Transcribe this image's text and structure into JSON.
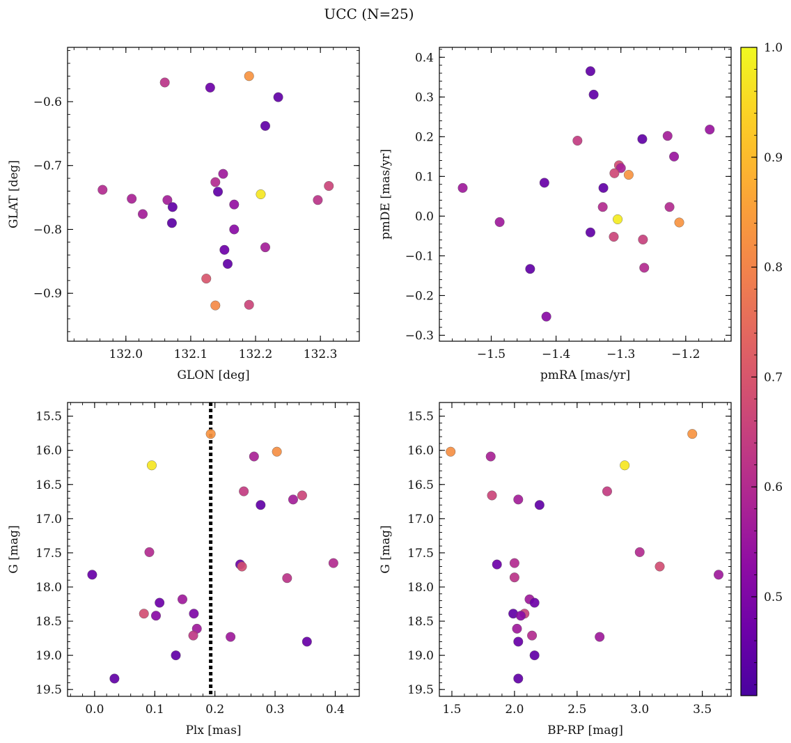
{
  "figure": {
    "title": "UCC (N=25)"
  },
  "chart_data": [
    {
      "type": "scatter",
      "name": "glon-glat",
      "title": "",
      "xlabel": "GLON [deg]",
      "ylabel": "GLAT [deg]",
      "xlim": [
        131.91,
        132.36
      ],
      "ylim": [
        -0.975,
        -0.515
      ],
      "xticks": [
        132.0,
        132.1,
        132.2,
        132.3
      ],
      "yticks": [
        -0.6,
        -0.7,
        -0.8,
        -0.9
      ],
      "tick_decimals_x": 1,
      "tick_decimals_y": 1,
      "grid": false,
      "points": [
        {
          "x": 132.19,
          "y": -0.56,
          "c": 0.83
        },
        {
          "x": 132.06,
          "y": -0.57,
          "c": 0.62
        },
        {
          "x": 132.13,
          "y": -0.578,
          "c": 0.47
        },
        {
          "x": 132.235,
          "y": -0.593,
          "c": 0.45
        },
        {
          "x": 132.215,
          "y": -0.638,
          "c": 0.45
        },
        {
          "x": 132.15,
          "y": -0.713,
          "c": 0.56
        },
        {
          "x": 132.138,
          "y": -0.726,
          "c": 0.6
        },
        {
          "x": 132.313,
          "y": -0.732,
          "c": 0.66
        },
        {
          "x": 131.964,
          "y": -0.738,
          "c": 0.6
        },
        {
          "x": 132.142,
          "y": -0.741,
          "c": 0.45
        },
        {
          "x": 132.208,
          "y": -0.745,
          "c": 0.97
        },
        {
          "x": 132.009,
          "y": -0.752,
          "c": 0.58
        },
        {
          "x": 132.064,
          "y": -0.754,
          "c": 0.57
        },
        {
          "x": 132.296,
          "y": -0.754,
          "c": 0.62
        },
        {
          "x": 132.167,
          "y": -0.761,
          "c": 0.54
        },
        {
          "x": 132.072,
          "y": -0.765,
          "c": 0.45
        },
        {
          "x": 132.026,
          "y": -0.776,
          "c": 0.57
        },
        {
          "x": 132.071,
          "y": -0.79,
          "c": 0.44
        },
        {
          "x": 132.167,
          "y": -0.8,
          "c": 0.52
        },
        {
          "x": 132.215,
          "y": -0.828,
          "c": 0.57
        },
        {
          "x": 132.152,
          "y": -0.832,
          "c": 0.47
        },
        {
          "x": 132.157,
          "y": -0.854,
          "c": 0.45
        },
        {
          "x": 132.124,
          "y": -0.877,
          "c": 0.7
        },
        {
          "x": 132.19,
          "y": -0.918,
          "c": 0.66
        },
        {
          "x": 132.138,
          "y": -0.919,
          "c": 0.81
        }
      ]
    },
    {
      "type": "scatter",
      "name": "pmra-pmde",
      "title": "",
      "xlabel": "pmRA [mas/yr]",
      "ylabel": "pmDE [mas/yr]",
      "xlim": [
        -1.58,
        -1.13
      ],
      "ylim": [
        -0.315,
        0.425
      ],
      "xticks": [
        -1.5,
        -1.4,
        -1.3,
        -1.2
      ],
      "yticks": [
        0.4,
        0.3,
        0.2,
        0.1,
        0.0,
        -0.1,
        -0.2,
        -0.3
      ],
      "tick_decimals_x": 1,
      "tick_decimals_y": 1,
      "grid": false,
      "points": [
        {
          "x": -1.347,
          "y": 0.365,
          "c": 0.45
        },
        {
          "x": -1.342,
          "y": 0.306,
          "c": 0.45
        },
        {
          "x": -1.163,
          "y": 0.218,
          "c": 0.55
        },
        {
          "x": -1.228,
          "y": 0.202,
          "c": 0.57
        },
        {
          "x": -1.267,
          "y": 0.194,
          "c": 0.45
        },
        {
          "x": -1.367,
          "y": 0.19,
          "c": 0.64
        },
        {
          "x": -1.218,
          "y": 0.15,
          "c": 0.55
        },
        {
          "x": -1.303,
          "y": 0.128,
          "c": 0.68
        },
        {
          "x": -1.3,
          "y": 0.121,
          "c": 0.58
        },
        {
          "x": -1.31,
          "y": 0.108,
          "c": 0.67
        },
        {
          "x": -1.288,
          "y": 0.104,
          "c": 0.83
        },
        {
          "x": -1.418,
          "y": 0.084,
          "c": 0.46
        },
        {
          "x": -1.544,
          "y": 0.071,
          "c": 0.56
        },
        {
          "x": -1.327,
          "y": 0.071,
          "c": 0.45
        },
        {
          "x": -1.328,
          "y": 0.023,
          "c": 0.6
        },
        {
          "x": -1.225,
          "y": 0.023,
          "c": 0.6
        },
        {
          "x": -1.305,
          "y": -0.008,
          "c": 0.98
        },
        {
          "x": -1.21,
          "y": -0.016,
          "c": 0.83
        },
        {
          "x": -1.487,
          "y": -0.015,
          "c": 0.56
        },
        {
          "x": -1.347,
          "y": -0.041,
          "c": 0.45
        },
        {
          "x": -1.311,
          "y": -0.052,
          "c": 0.66
        },
        {
          "x": -1.266,
          "y": -0.059,
          "c": 0.65
        },
        {
          "x": -1.264,
          "y": -0.13,
          "c": 0.6
        },
        {
          "x": -1.44,
          "y": -0.133,
          "c": 0.45
        },
        {
          "x": -1.415,
          "y": -0.253,
          "c": 0.52
        }
      ]
    },
    {
      "type": "scatter",
      "name": "plx-g",
      "title": "",
      "xlabel": "Plx [mas]",
      "ylabel": "G [mag]",
      "xlim": [
        -0.045,
        0.44
      ],
      "ylim": [
        19.6,
        15.3
      ],
      "xticks": [
        0.0,
        0.1,
        0.2,
        0.3,
        0.4
      ],
      "yticks": [
        15.5,
        16.0,
        16.5,
        17.0,
        17.5,
        18.0,
        18.5,
        19.0,
        19.5
      ],
      "tick_decimals_x": 1,
      "tick_decimals_y": 1,
      "grid": false,
      "vline": 0.193,
      "points": [
        {
          "x": 0.193,
          "y": 15.76,
          "c": 0.83
        },
        {
          "x": 0.303,
          "y": 16.02,
          "c": 0.82
        },
        {
          "x": 0.265,
          "y": 16.09,
          "c": 0.58
        },
        {
          "x": 0.095,
          "y": 16.22,
          "c": 0.97
        },
        {
          "x": 0.248,
          "y": 16.6,
          "c": 0.64
        },
        {
          "x": 0.345,
          "y": 16.66,
          "c": 0.66
        },
        {
          "x": 0.33,
          "y": 16.72,
          "c": 0.57
        },
        {
          "x": 0.276,
          "y": 16.8,
          "c": 0.45
        },
        {
          "x": 0.091,
          "y": 17.49,
          "c": 0.6
        },
        {
          "x": 0.397,
          "y": 17.65,
          "c": 0.6
        },
        {
          "x": 0.242,
          "y": 17.67,
          "c": 0.47
        },
        {
          "x": 0.245,
          "y": 17.7,
          "c": 0.68
        },
        {
          "x": -0.004,
          "y": 17.82,
          "c": 0.46
        },
        {
          "x": 0.32,
          "y": 17.87,
          "c": 0.62
        },
        {
          "x": 0.146,
          "y": 18.18,
          "c": 0.56
        },
        {
          "x": 0.108,
          "y": 18.23,
          "c": 0.47
        },
        {
          "x": 0.082,
          "y": 18.39,
          "c": 0.68
        },
        {
          "x": 0.165,
          "y": 18.39,
          "c": 0.5
        },
        {
          "x": 0.102,
          "y": 18.42,
          "c": 0.52
        },
        {
          "x": 0.17,
          "y": 18.61,
          "c": 0.56
        },
        {
          "x": 0.164,
          "y": 18.71,
          "c": 0.63
        },
        {
          "x": 0.226,
          "y": 18.73,
          "c": 0.56
        },
        {
          "x": 0.353,
          "y": 18.8,
          "c": 0.46
        },
        {
          "x": 0.135,
          "y": 19.0,
          "c": 0.45
        },
        {
          "x": 0.033,
          "y": 19.34,
          "c": 0.45
        }
      ]
    },
    {
      "type": "scatter",
      "name": "bprp-g",
      "title": "",
      "xlabel": "BP-RP [mag]",
      "ylabel": "G [mag]",
      "xlim": [
        1.4,
        3.73
      ],
      "ylim": [
        19.6,
        15.3
      ],
      "xticks": [
        1.5,
        2.0,
        2.5,
        3.0,
        3.5
      ],
      "yticks": [
        15.5,
        16.0,
        16.5,
        17.0,
        17.5,
        18.0,
        18.5,
        19.0,
        19.5
      ],
      "tick_decimals_x": 1,
      "tick_decimals_y": 1,
      "grid": false,
      "points": [
        {
          "x": 3.42,
          "y": 15.76,
          "c": 0.83
        },
        {
          "x": 1.49,
          "y": 16.02,
          "c": 0.82
        },
        {
          "x": 1.81,
          "y": 16.09,
          "c": 0.58
        },
        {
          "x": 2.88,
          "y": 16.22,
          "c": 0.97
        },
        {
          "x": 2.74,
          "y": 16.6,
          "c": 0.64
        },
        {
          "x": 1.82,
          "y": 16.66,
          "c": 0.66
        },
        {
          "x": 2.03,
          "y": 16.72,
          "c": 0.57
        },
        {
          "x": 2.2,
          "y": 16.8,
          "c": 0.45
        },
        {
          "x": 3.0,
          "y": 17.49,
          "c": 0.6
        },
        {
          "x": 2.0,
          "y": 17.65,
          "c": 0.6
        },
        {
          "x": 1.86,
          "y": 17.67,
          "c": 0.47
        },
        {
          "x": 3.16,
          "y": 17.7,
          "c": 0.68
        },
        {
          "x": 3.63,
          "y": 17.82,
          "c": 0.56
        },
        {
          "x": 2.0,
          "y": 17.86,
          "c": 0.62
        },
        {
          "x": 2.12,
          "y": 18.18,
          "c": 0.56
        },
        {
          "x": 2.16,
          "y": 18.23,
          "c": 0.47
        },
        {
          "x": 1.99,
          "y": 18.39,
          "c": 0.45
        },
        {
          "x": 2.08,
          "y": 18.39,
          "c": 0.65
        },
        {
          "x": 2.05,
          "y": 18.42,
          "c": 0.52
        },
        {
          "x": 2.02,
          "y": 18.61,
          "c": 0.56
        },
        {
          "x": 2.14,
          "y": 18.71,
          "c": 0.6
        },
        {
          "x": 2.68,
          "y": 18.73,
          "c": 0.56
        },
        {
          "x": 2.03,
          "y": 18.8,
          "c": 0.46
        },
        {
          "x": 2.16,
          "y": 19.0,
          "c": 0.45
        },
        {
          "x": 2.03,
          "y": 19.34,
          "c": 0.45
        }
      ]
    }
  ],
  "colorbar": {
    "min": 0.41,
    "max": 1.0,
    "ticks": [
      0.5,
      0.6,
      0.7,
      0.8,
      0.9,
      1.0
    ],
    "tick_labels": [
      "0.5",
      "0.6",
      "0.7",
      "0.8",
      "0.9",
      "1.0"
    ],
    "colormap": "plasma"
  }
}
